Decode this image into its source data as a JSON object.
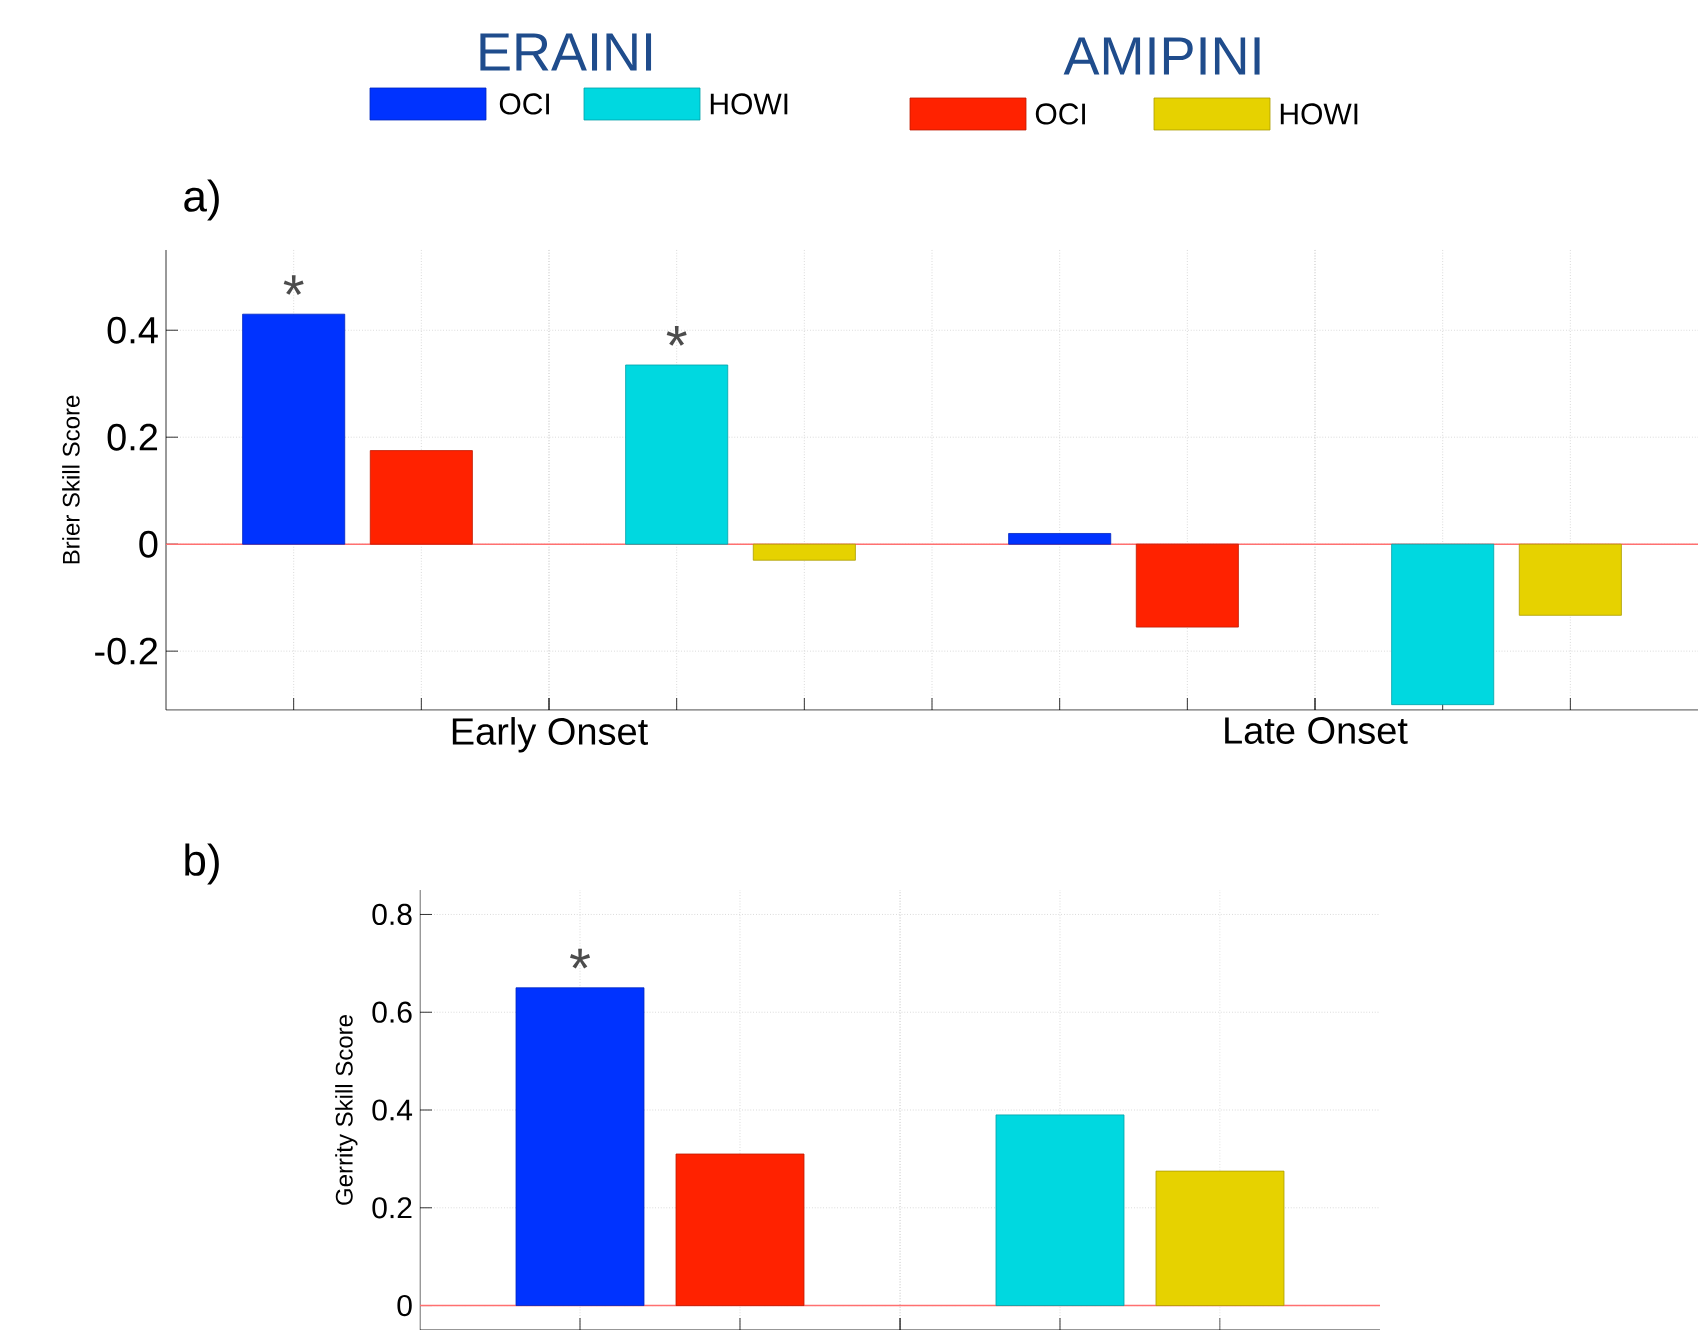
{
  "chart_data": [
    {
      "type": "bar",
      "ylabel": "Brier Skill Score",
      "categories": [
        "Early  Onset",
        "Late Onset"
      ],
      "series": [
        {
          "name": "OCI",
          "color": "#0033ff",
          "values": [
            0.43,
            0.02
          ],
          "value_labels": [
            "*",
            null
          ]
        },
        {
          "name": "OCI",
          "color": "#ff2200",
          "values": [
            0.175,
            -0.155
          ]
        },
        {
          "name": "HOWI",
          "color": "#00d8e0",
          "values": [
            0.335,
            -0.3
          ],
          "value_labels": [
            "*",
            null
          ]
        },
        {
          "name": "HOWI",
          "color": "#e6d200",
          "values": [
            -0.03,
            -0.133
          ]
        }
      ],
      "ylim": [
        -0.31,
        0.55
      ],
      "yticks": [
        -0.2,
        0,
        0.2,
        0.4
      ],
      "grid": true,
      "legend": "top",
      "ref_lines": [
        {
          "axis": "y",
          "value": 0,
          "color": "#ff7070"
        }
      ],
      "annotations": [
        "ERAINI",
        "AMIPINI",
        "a)"
      ]
    },
    {
      "type": "bar",
      "ylabel": "Gerrity Skill Score",
      "categories": [
        null
      ],
      "series": [
        {
          "color": "#0033ff",
          "values": [
            0.65
          ],
          "value_labels": [
            "*"
          ]
        },
        {
          "color": "#ff2200",
          "values": [
            0.31
          ]
        },
        {
          "color": "#00d8e0",
          "values": [
            0.39
          ]
        },
        {
          "color": "#e6d200",
          "values": [
            0.275
          ]
        }
      ],
      "ylim": [
        -0.05,
        0.85
      ],
      "yticks": [
        0,
        0.2,
        0.4,
        0.6,
        0.8
      ],
      "grid": true,
      "ref_lines": [
        {
          "axis": "y",
          "value": 0,
          "color": "#ff7070"
        }
      ],
      "annotations": [
        "b)"
      ]
    }
  ]
}
